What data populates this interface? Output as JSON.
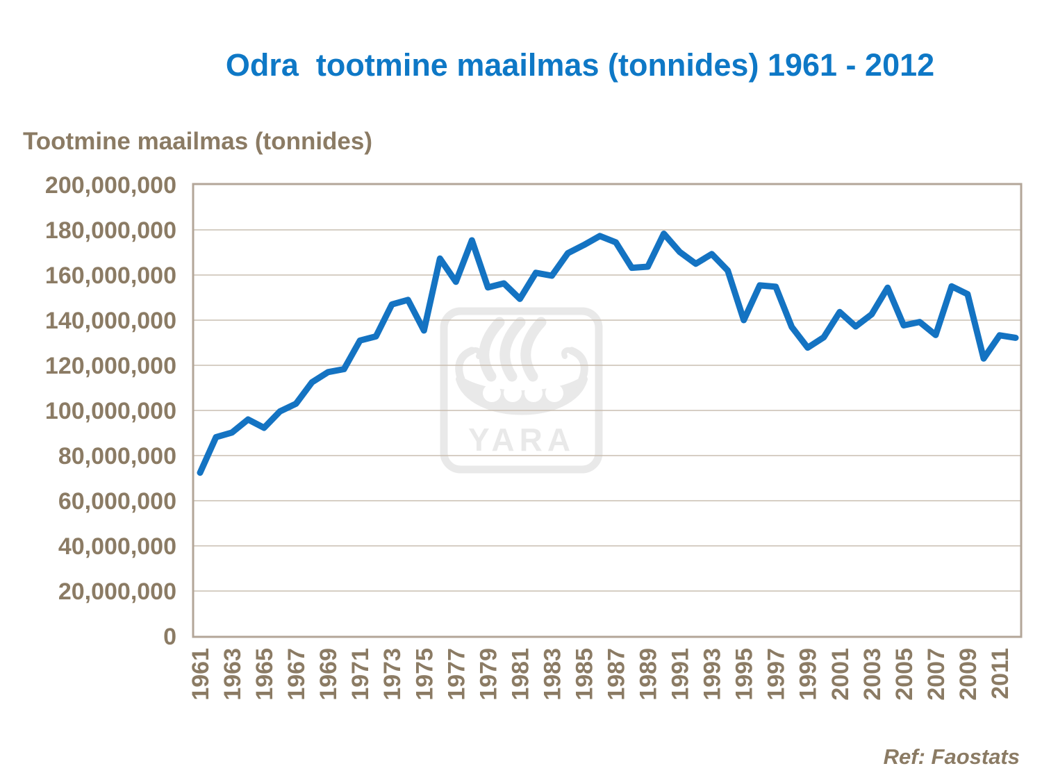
{
  "title": "Odra  tootmine maailmas (tonnides) 1961 - 2012",
  "axis_title": "Tootmine maailmas (tonnides)",
  "ref_note": "Ref: Faostats",
  "watermark": {
    "text": "YARA"
  },
  "colors": {
    "title_blue": "#0e78c6",
    "line_blue": "#1473c2",
    "label_brown": "#8b7b64",
    "gridline": "#c9bdb0",
    "frame": "#b3a698",
    "watermark_gray": "#e9e9e9",
    "background": "#ffffff"
  },
  "chart_data": {
    "type": "line",
    "title": "Odra  tootmine maailmas (tonnides) 1961 - 2012",
    "xlabel": "",
    "ylabel": "Tootmine maailmas (tonnides)",
    "unit": "tonnes",
    "ylim": [
      0,
      200000000
    ],
    "ytick_step": 20000000,
    "grid": "horizontal",
    "legend": "none",
    "x": [
      1961,
      1962,
      1963,
      1964,
      1965,
      1966,
      1967,
      1968,
      1969,
      1970,
      1971,
      1972,
      1973,
      1974,
      1975,
      1976,
      1977,
      1978,
      1979,
      1980,
      1981,
      1982,
      1983,
      1984,
      1985,
      1986,
      1987,
      1988,
      1989,
      1990,
      1991,
      1992,
      1993,
      1994,
      1995,
      1996,
      1997,
      1998,
      1999,
      2000,
      2001,
      2002,
      2003,
      2004,
      2005,
      2006,
      2007,
      2008,
      2009,
      2010,
      2011,
      2012
    ],
    "xtick_labels": [
      "1961",
      "1963",
      "1965",
      "1967",
      "1969",
      "1971",
      "1973",
      "1975",
      "1977",
      "1979",
      "1981",
      "1983",
      "1985",
      "1987",
      "1989",
      "1991",
      "1993",
      "1995",
      "1997",
      "1999",
      "2001",
      "2003",
      "2005",
      "2007",
      "2009",
      "2011"
    ],
    "values_million_tonnes": [
      72.4,
      88.2,
      90.2,
      96.0,
      92.3,
      99.6,
      103.0,
      112.5,
      117.0,
      118.3,
      131.0,
      132.8,
      147.0,
      149.0,
      135.4,
      167.3,
      157.0,
      175.4,
      154.5,
      156.3,
      149.4,
      161.0,
      159.7,
      169.7,
      173.3,
      177.3,
      174.5,
      163.2,
      163.7,
      178.3,
      170.2,
      165.0,
      169.3,
      162.0,
      140.0,
      155.4,
      154.8,
      137.0,
      127.8,
      132.4,
      143.6,
      137.2,
      142.6,
      154.4,
      137.7,
      139.2,
      133.4,
      155.0,
      151.5,
      123.0,
      133.3,
      132.2
    ]
  }
}
